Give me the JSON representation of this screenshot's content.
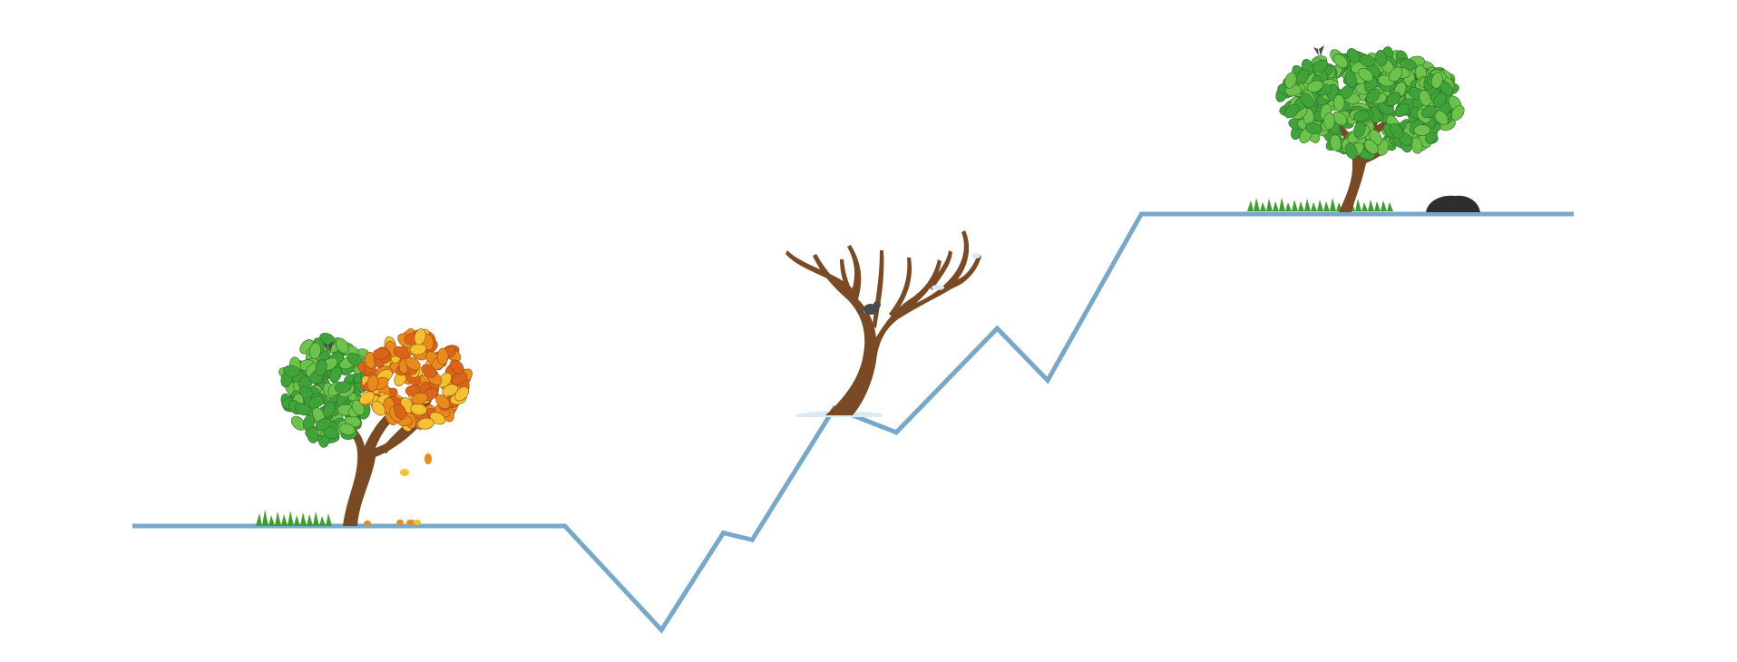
{
  "diagram": {
    "line_color": "#77A8CA",
    "path_points": [
      [
        0,
        0
      ],
      [
        0.3,
        0
      ],
      [
        0.367,
        -0.3
      ],
      [
        0.41,
        -0.02
      ],
      [
        0.43,
        -0.04
      ],
      [
        0.487,
        0.34
      ],
      [
        0.53,
        0.27
      ],
      [
        0.6,
        0.57
      ],
      [
        0.635,
        0.42
      ],
      [
        0.7,
        0.9
      ],
      [
        0.838,
        0.9
      ],
      [
        1,
        0.9
      ]
    ],
    "scenes": [
      {
        "name": "autumn",
        "icon": "autumn-tree-icon",
        "anchor": 0.2
      },
      {
        "name": "winter",
        "icon": "bare-winter-tree-icon",
        "anchor": 0.487
      },
      {
        "name": "summer",
        "icon": "green-summer-tree-icon",
        "anchor": 0.833
      }
    ],
    "colors": {
      "trunk": "#7A4A25",
      "leaf_green": "#3FA33A",
      "leaf_green_light": "#6CC24A",
      "leaf_orange": "#E88A1C",
      "leaf_yellow": "#F2C230",
      "grass": "#3E9E2C",
      "snow": "#DCEAF4",
      "bird": "#4A4A4A",
      "rock": "#2E2E2E"
    }
  }
}
